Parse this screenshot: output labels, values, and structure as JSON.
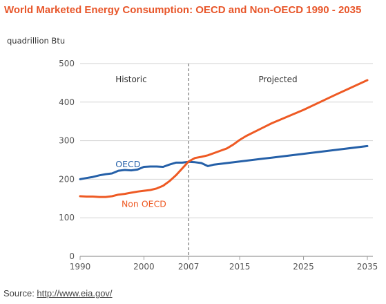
{
  "title": "World Marketed Energy Consumption: OECD and Non-OECD 1990 - 2035",
  "source": {
    "prefix": "Source: ",
    "link_text": "http://www.eia.gov/"
  },
  "chart_data": {
    "type": "line",
    "ylabel": "quadrillion Btu",
    "xlim": [
      1990,
      2035
    ],
    "ylim": [
      0,
      500
    ],
    "x_ticks": [
      {
        "value": 1990,
        "label": "1990"
      },
      {
        "value": 2000,
        "label": "2000"
      },
      {
        "value": 2007,
        "label": "2007"
      },
      {
        "value": 2015,
        "label": "2015"
      },
      {
        "value": 2025,
        "label": "2025"
      },
      {
        "value": 2035,
        "label": "2035"
      }
    ],
    "y_ticks": [
      0,
      100,
      200,
      300,
      400,
      500
    ],
    "grid": true,
    "divider": {
      "x": 2007,
      "style": "dashed"
    },
    "regions": [
      {
        "label": "Historic",
        "x": 1998
      },
      {
        "label": "Projected",
        "x": 2021
      }
    ],
    "series": [
      {
        "name": "OECD",
        "color": "#2560a8",
        "label_x": 1997.5,
        "label_y": 231,
        "x": [
          1990,
          1991,
          1992,
          1993,
          1994,
          1995,
          1996,
          1997,
          1998,
          1999,
          2000,
          2001,
          2002,
          2003,
          2004,
          2005,
          2006,
          2007,
          2008,
          2009,
          2010,
          2011,
          2015,
          2020,
          2025,
          2030,
          2035
        ],
        "values": [
          200,
          203,
          206,
          210,
          213,
          215,
          222,
          224,
          223,
          225,
          232,
          233,
          233,
          232,
          238,
          243,
          243,
          245,
          244,
          242,
          234,
          238,
          246,
          256,
          266,
          276,
          286
        ]
      },
      {
        "name": "Non OECD",
        "color": "#ee5a24",
        "label_x": 2000,
        "label_y": 128,
        "x": [
          1990,
          1991,
          1992,
          1993,
          1994,
          1995,
          1996,
          1997,
          1998,
          1999,
          2000,
          2001,
          2002,
          2003,
          2004,
          2005,
          2006,
          2007,
          2008,
          2009,
          2010,
          2011,
          2012,
          2013,
          2014,
          2015,
          2016,
          2020,
          2025,
          2030,
          2035
        ],
        "values": [
          156,
          155,
          155,
          154,
          154,
          156,
          160,
          162,
          165,
          168,
          170,
          172,
          176,
          183,
          195,
          210,
          228,
          246,
          255,
          258,
          262,
          268,
          274,
          280,
          290,
          302,
          312,
          345,
          380,
          419,
          457
        ]
      }
    ]
  }
}
